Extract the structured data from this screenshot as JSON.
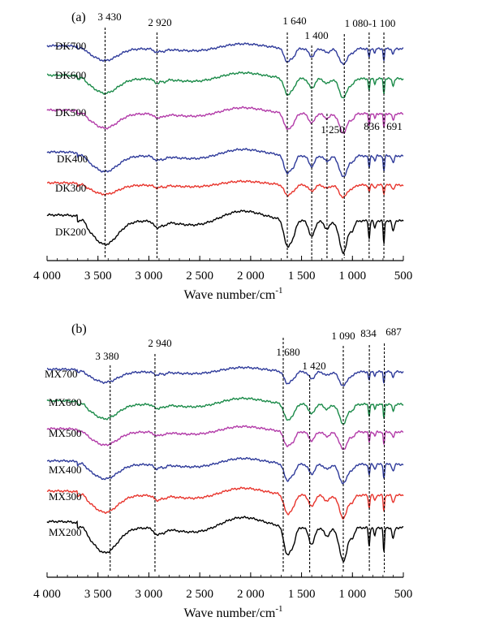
{
  "colors": {
    "black": "#000000",
    "red": "#e8342c",
    "blue": "#2e3a9a",
    "green": "#1a8a48",
    "magenta": "#b23aa8"
  },
  "chart_data": [
    {
      "type": "line",
      "panel_label": "(a)",
      "xlabel": "Wave number/cm",
      "xlabel_sup": "-1",
      "xlim": [
        4000,
        500
      ],
      "x_reversed": true,
      "yaxis_shown": false,
      "grid": false,
      "x_ticks": [
        4000,
        3500,
        3000,
        2500,
        2000,
        1500,
        1000,
        500
      ],
      "x_tick_labels": [
        "4 000",
        "3 500",
        "3 000",
        "2 500",
        "2 000",
        "1 500",
        "1 000",
        "500"
      ],
      "peak_markers": [
        {
          "x": 3430,
          "label": "3 430"
        },
        {
          "x": 2920,
          "label": "2 920"
        },
        {
          "x": 1640,
          "label": "1 640"
        },
        {
          "x": 1400,
          "label": "1 400"
        },
        {
          "x": 1250,
          "label": "1 250"
        },
        {
          "x": 1080,
          "label": "1 080-1 100"
        },
        {
          "x": 836,
          "label": "836"
        },
        {
          "x": 691,
          "label": "691"
        }
      ],
      "series": [
        {
          "name": "DK700",
          "color": "blue"
        },
        {
          "name": "DK600",
          "color": "green"
        },
        {
          "name": "DK500",
          "color": "magenta"
        },
        {
          "name": "DK400",
          "color": "blue"
        },
        {
          "name": "DK300",
          "color": "red"
        },
        {
          "name": "DK200",
          "color": "black"
        }
      ]
    },
    {
      "type": "line",
      "panel_label": "(b)",
      "xlabel": "Wave number/cm",
      "xlabel_sup": "-1",
      "xlim": [
        4000,
        500
      ],
      "x_reversed": true,
      "yaxis_shown": false,
      "grid": false,
      "x_ticks": [
        4000,
        3500,
        3000,
        2500,
        2000,
        1500,
        1000,
        500
      ],
      "x_tick_labels": [
        "4 000",
        "3 500",
        "3 000",
        "2 500",
        "2 000",
        "1 500",
        "1 000",
        "500"
      ],
      "peak_markers": [
        {
          "x": 3380,
          "label": "3 380"
        },
        {
          "x": 2940,
          "label": "2 940"
        },
        {
          "x": 1680,
          "label": "1 680"
        },
        {
          "x": 1420,
          "label": "1 420"
        },
        {
          "x": 1090,
          "label": "1 090"
        },
        {
          "x": 834,
          "label": "834"
        },
        {
          "x": 687,
          "label": "687"
        }
      ],
      "series": [
        {
          "name": "MX700",
          "color": "blue"
        },
        {
          "name": "MX600",
          "color": "green"
        },
        {
          "name": "MX500",
          "color": "magenta"
        },
        {
          "name": "MX400",
          "color": "blue"
        },
        {
          "name": "MX300",
          "color": "red"
        },
        {
          "name": "MX200",
          "color": "black"
        }
      ]
    }
  ]
}
